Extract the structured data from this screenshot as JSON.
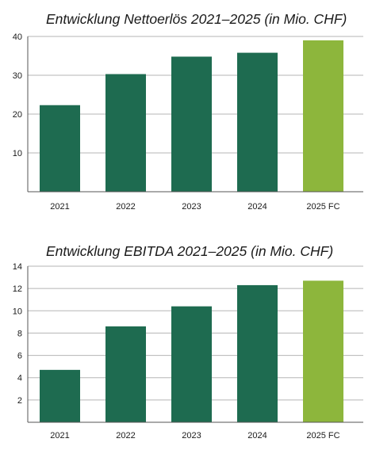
{
  "chart_data": [
    {
      "type": "bar",
      "title": "Entwicklung Nettoerlös 2021–2025 (in Mio. CHF)",
      "categories": [
        "2021",
        "2022",
        "2023",
        "2024",
        "2025 FC"
      ],
      "values": [
        22.3,
        30.3,
        34.8,
        35.8,
        39.0
      ],
      "yticks": [
        10,
        20,
        30,
        40
      ],
      "ylim": [
        0,
        40
      ],
      "grid": true,
      "colors": [
        "#1e6b50",
        "#1e6b50",
        "#1e6b50",
        "#1e6b50",
        "#8db63c"
      ]
    },
    {
      "type": "bar",
      "title": "Entwicklung EBITDA 2021–2025 (in Mio. CHF)",
      "categories": [
        "2021",
        "2022",
        "2023",
        "2024",
        "2025 FC"
      ],
      "values": [
        4.7,
        8.6,
        10.4,
        12.3,
        12.7
      ],
      "yticks": [
        2,
        4,
        6,
        8,
        10,
        12,
        14
      ],
      "ylim": [
        0,
        14
      ],
      "grid": true,
      "colors": [
        "#1e6b50",
        "#1e6b50",
        "#1e6b50",
        "#1e6b50",
        "#8db63c"
      ]
    }
  ]
}
